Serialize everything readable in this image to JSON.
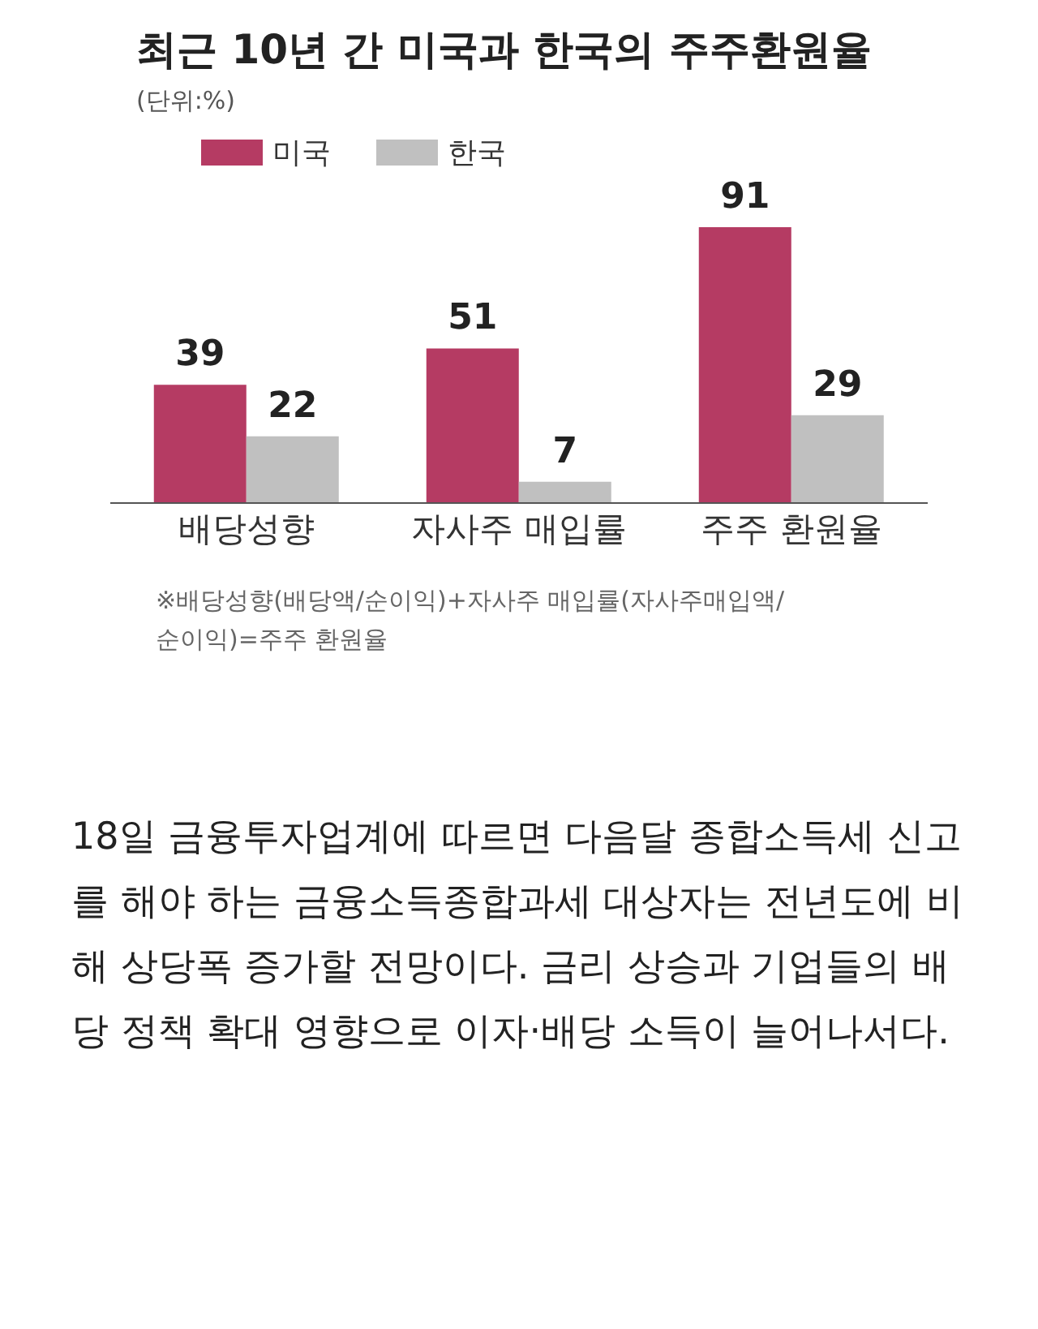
{
  "chart_data": {
    "type": "bar",
    "title": "최근 10년 간 미국과 한국의 주주환원율",
    "subtitle": "(단위:%)",
    "categories": [
      "배당성향",
      "자사주 매입률",
      "주주 환원율"
    ],
    "series": [
      {
        "name": "미국",
        "color": "#b53b63",
        "values": [
          39,
          51,
          91
        ]
      },
      {
        "name": "한국",
        "color": "#c0c0c0",
        "values": [
          22,
          7,
          29
        ]
      }
    ],
    "data_labels": true,
    "legend": "top left",
    "grid": false,
    "annotations": [
      "※배당성향(배당액/순이익)+자사주 매입률(자사주매입액/순이익)=주주 환원율",
      "18일 금융투자업계에 따르면 다음달 종합소득세 신고를 해야 하는 금융소득종합과세 대상자는 전년도에 비해 상당폭 증가할 전망이다. 금리 상승과 기업들의 배당 정책 확대 영향으로 이자·배당 소득이 늘어나서다."
    ]
  }
}
